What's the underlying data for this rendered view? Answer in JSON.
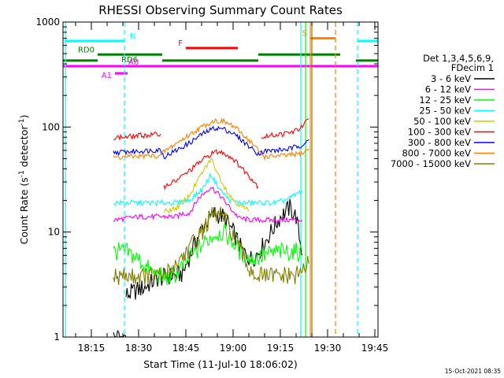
{
  "chart_data": {
    "type": "line",
    "title": "RHESSI Observing Summary Count Rates",
    "xlabel": "Start Time (11-Jul-10 18:06:02)",
    "ylabel": "Count Rate (s",
    "ylabel_sup": "-1",
    "ylabel_tail": " detector",
    "ylabel_close": ")",
    "yscale": "log",
    "ylim": [
      1,
      1000
    ],
    "xlim_minutes": [
      0,
      100
    ],
    "x_unit": "minutes since start",
    "x_tick_labels": [
      "18:15",
      "18:30",
      "18:45",
      "19:00",
      "19:15",
      "19:30",
      "19:45"
    ],
    "x_tick_minutes": [
      9,
      24,
      39,
      54,
      69,
      84,
      99
    ],
    "y_tick_labels": [
      "1",
      "10",
      "100",
      "1000"
    ],
    "y_tick_values": [
      1,
      10,
      100,
      1000
    ],
    "legend_header": [
      "Det 1,3,4,5,6,9,",
      "FDecim 1"
    ],
    "legend_position": "right",
    "footer": "15-Oct-2021 08:35",
    "series": [
      {
        "name": "3 - 6 keV",
        "color": "#000000",
        "segments": [
          [
            [
              16,
              1.0
            ],
            [
              20,
              1.0
            ]
          ],
          [
            [
              20,
              2.5
            ],
            [
              26,
              3.0
            ],
            [
              30,
              3.6
            ],
            [
              34,
              3.8
            ],
            [
              38,
              4.0
            ],
            [
              42,
              8
            ],
            [
              45,
              12
            ],
            [
              48,
              15
            ],
            [
              51,
              14
            ],
            [
              54,
              10
            ],
            [
              57,
              6.5
            ],
            [
              60,
              5.5
            ],
            [
              63,
              7
            ],
            [
              66,
              10
            ],
            [
              69,
              14
            ],
            [
              72,
              17
            ],
            [
              74,
              14
            ],
            [
              76,
              6
            ]
          ]
        ]
      },
      {
        "name": "6 - 12 keV",
        "color": "#ff00ff",
        "segments": [
          [
            [
              16,
              13
            ],
            [
              20,
              13.5
            ],
            [
              24,
              14
            ],
            [
              28,
              14
            ],
            [
              32,
              14
            ],
            [
              36,
              14
            ],
            [
              38,
              15
            ],
            [
              40,
              15
            ],
            [
              43,
              21
            ],
            [
              47,
              27
            ],
            [
              50,
              22
            ],
            [
              53,
              17
            ],
            [
              56,
              13.5
            ],
            [
              60,
              13
            ],
            [
              64,
              13
            ],
            [
              68,
              13
            ],
            [
              72,
              13
            ],
            [
              76,
              13
            ]
          ]
        ]
      },
      {
        "name": "12 - 25 keV",
        "color": "#00ff00",
        "segments": [
          [
            [
              16,
              6.5
            ],
            [
              20,
              6.5
            ],
            [
              24,
              5.5
            ],
            [
              28,
              4.2
            ],
            [
              32,
              3.6
            ],
            [
              36,
              4
            ],
            [
              40,
              5.5
            ],
            [
              44,
              7.5
            ],
            [
              48,
              9.5
            ],
            [
              51,
              10
            ],
            [
              54,
              8
            ],
            [
              57,
              6
            ],
            [
              60,
              5.5
            ],
            [
              64,
              6
            ],
            [
              68,
              6.5
            ],
            [
              72,
              6.5
            ],
            [
              76,
              6.5
            ]
          ]
        ]
      },
      {
        "name": "25 - 50 keV",
        "color": "#00ffff",
        "segments": [
          [
            [
              16,
              19
            ],
            [
              20,
              19
            ],
            [
              24,
              19
            ],
            [
              28,
              19
            ],
            [
              32,
              19
            ],
            [
              36,
              19
            ],
            [
              40,
              20
            ],
            [
              44,
              25
            ],
            [
              47,
              35
            ],
            [
              50,
              25
            ],
            [
              53,
              20
            ],
            [
              56,
              19
            ],
            [
              60,
              19
            ],
            [
              64,
              19
            ],
            [
              68,
              19
            ],
            [
              72,
              21
            ],
            [
              76,
              25
            ]
          ]
        ]
      },
      {
        "name": "50 - 100 keV",
        "color": "#cccc00",
        "segments": [
          [
            [
              32,
              15.5
            ],
            [
              36,
              17
            ],
            [
              40,
              22
            ],
            [
              43,
              32
            ],
            [
              47,
              50
            ],
            [
              50,
              32
            ],
            [
              53,
              22
            ],
            [
              56,
              18
            ],
            [
              59,
              16
            ]
          ]
        ]
      },
      {
        "name": "100 - 300 keV",
        "color": "#ff0000",
        "segments": [
          [
            [
              16,
              80
            ],
            [
              20,
              80
            ],
            [
              24,
              83
            ],
            [
              28,
              84
            ],
            [
              31,
              86
            ]
          ],
          [
            [
              32,
              27
            ],
            [
              36,
              31
            ],
            [
              40,
              38
            ],
            [
              44,
              48
            ],
            [
              48,
              58
            ],
            [
              51,
              57
            ],
            [
              54,
              50
            ],
            [
              57,
              40
            ],
            [
              60,
              32
            ],
            [
              62,
              27
            ]
          ],
          [
            [
              63,
              80
            ],
            [
              67,
              84
            ],
            [
              70,
              86
            ],
            [
              73,
              90
            ],
            [
              76,
              100
            ],
            [
              78,
              120
            ]
          ]
        ]
      },
      {
        "name": "300 - 800 keV",
        "color": "#0000ff",
        "segments": [
          [
            [
              16,
              57
            ],
            [
              20,
              58
            ],
            [
              24,
              59
            ],
            [
              28,
              60
            ],
            [
              31,
              61
            ],
            [
              32,
              52
            ],
            [
              36,
              60
            ],
            [
              40,
              70
            ],
            [
              44,
              85
            ],
            [
              48,
              98
            ],
            [
              51,
              96
            ],
            [
              54,
              87
            ],
            [
              57,
              74
            ],
            [
              60,
              62
            ],
            [
              62,
              56
            ],
            [
              64,
              59
            ],
            [
              68,
              60
            ],
            [
              72,
              62
            ],
            [
              76,
              68
            ],
            [
              78,
              76
            ]
          ]
        ]
      },
      {
        "name": "800 - 7000 keV",
        "color": "#ff8000",
        "segments": [
          [
            [
              16,
              51
            ],
            [
              20,
              52
            ],
            [
              24,
              53
            ],
            [
              28,
              53
            ],
            [
              31,
              53
            ],
            [
              32,
              58
            ],
            [
              36,
              70
            ],
            [
              40,
              84
            ],
            [
              44,
              100
            ],
            [
              48,
              115
            ],
            [
              51,
              113
            ],
            [
              54,
              102
            ],
            [
              57,
              86
            ],
            [
              60,
              70
            ],
            [
              62,
              60
            ],
            [
              64,
              52
            ],
            [
              68,
              53
            ],
            [
              72,
              54
            ],
            [
              76,
              56
            ],
            [
              78,
              62
            ]
          ]
        ]
      },
      {
        "name": "7000 - 15000 keV",
        "color": "#808000",
        "segments": [
          [
            [
              16,
              3.8
            ],
            [
              20,
              3.8
            ],
            [
              24,
              3.8
            ],
            [
              28,
              3.8
            ],
            [
              32,
              3.8
            ],
            [
              36,
              5
            ],
            [
              40,
              7
            ],
            [
              44,
              10
            ],
            [
              47,
              14
            ],
            [
              50,
              15
            ],
            [
              53,
              11
            ],
            [
              56,
              7
            ],
            [
              59,
              4.5
            ],
            [
              62,
              3.8
            ],
            [
              66,
              3.8
            ],
            [
              70,
              3.8
            ],
            [
              74,
              3.8
            ],
            [
              78,
              5
            ]
          ]
        ]
      }
    ],
    "vertical_lines": [
      {
        "x": 0.8,
        "color": "#00ffff",
        "dashed": false
      },
      {
        "x": 19.5,
        "color": "#00ffff",
        "dashed": true
      },
      {
        "x": 75.5,
        "color": "#00ffff",
        "dashed": false
      },
      {
        "x": 78.5,
        "color": "#ff8000",
        "dashed": false
      },
      {
        "x": 77,
        "color": "#00ff00",
        "dashed": false
      },
      {
        "x": 79,
        "color": "#808000",
        "dashed": false
      },
      {
        "x": 86.5,
        "color": "#ff8000",
        "dashed": true
      },
      {
        "x": 93.5,
        "color": "#00ffff",
        "dashed": true
      }
    ],
    "flag_bars": [
      {
        "label": "N",
        "color": "#00ffff",
        "y": 660,
        "segments": [
          [
            0.5,
            19.5
          ],
          [
            93.5,
            100
          ]
        ]
      },
      {
        "label": "S",
        "color": "#ff8000",
        "y": 700,
        "segments": [
          [
            78.5,
            86.5
          ]
        ]
      },
      {
        "label": "F",
        "color": "#ff0000",
        "y": 565,
        "segments": [
          [
            39,
            55.5
          ]
        ]
      },
      {
        "label": "RD0",
        "color": "#008000",
        "y": 490,
        "segments": [
          [
            11,
            31.5
          ],
          [
            62,
            88
          ]
        ]
      },
      {
        "label": "RD6",
        "color": "#008000",
        "y": 430,
        "segments": [
          [
            0,
            11
          ],
          [
            31.5,
            62
          ],
          [
            93,
            100
          ]
        ]
      },
      {
        "label": "A0",
        "color": "#ff00ff",
        "y": 380,
        "segments": [
          [
            0,
            100
          ]
        ]
      },
      {
        "label": "A1",
        "color": "#ff00ff",
        "y": 325,
        "segments": [
          [
            16.5,
            20.5
          ]
        ]
      }
    ]
  }
}
